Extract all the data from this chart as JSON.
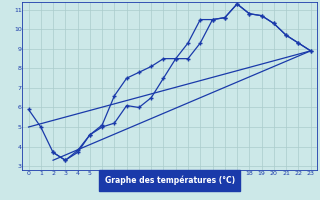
{
  "xlabel": "Graphe des températures (°C)",
  "background_color": "#cce8e8",
  "plot_bg_color": "#cce8e8",
  "grid_color": "#aacccc",
  "line_color": "#1a3aaa",
  "xlabel_bg": "#1a3aaa",
  "xlabel_fg": "#ffffff",
  "marker": "+",
  "xlim": [
    -0.5,
    23.5
  ],
  "ylim": [
    2.8,
    11.4
  ],
  "xticks": [
    0,
    1,
    2,
    3,
    4,
    5,
    6,
    7,
    8,
    9,
    10,
    11,
    12,
    13,
    14,
    15,
    16,
    17,
    18,
    19,
    20,
    21,
    22,
    23
  ],
  "yticks": [
    3,
    4,
    5,
    6,
    7,
    8,
    9,
    10,
    11
  ],
  "series1_x": [
    0,
    1,
    2,
    3,
    4,
    5,
    6,
    7,
    8,
    9,
    10,
    11,
    12,
    13,
    14,
    15,
    16,
    17,
    18,
    19,
    20,
    21,
    22,
    23
  ],
  "series1_y": [
    5.9,
    5.0,
    3.7,
    3.3,
    3.8,
    4.6,
    5.0,
    5.2,
    6.1,
    6.0,
    6.5,
    7.5,
    8.5,
    8.5,
    9.3,
    10.5,
    10.6,
    11.3,
    10.8,
    10.7,
    10.3,
    9.7,
    9.3,
    8.9
  ],
  "series2_x": [
    2,
    3,
    4,
    5,
    6,
    7,
    8,
    9,
    10,
    11,
    12,
    13,
    14,
    15,
    16,
    17,
    18,
    19,
    20,
    21,
    22,
    23
  ],
  "series2_y": [
    3.7,
    3.3,
    3.7,
    4.6,
    5.1,
    6.6,
    7.5,
    7.8,
    8.1,
    8.5,
    8.5,
    9.3,
    10.5,
    10.5,
    10.6,
    11.3,
    10.8,
    10.7,
    10.3,
    9.7,
    9.3,
    8.9
  ],
  "series3_x": [
    0,
    23
  ],
  "series3_y": [
    5.0,
    8.9
  ],
  "series4_x": [
    2,
    23
  ],
  "series4_y": [
    3.3,
    8.9
  ]
}
